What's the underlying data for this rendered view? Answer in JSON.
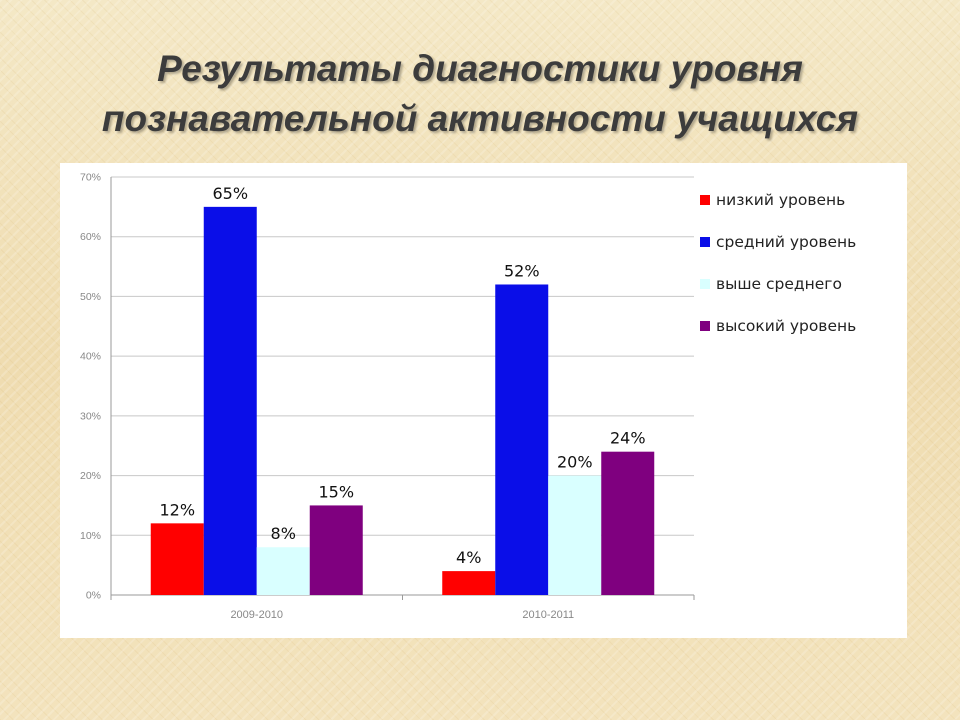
{
  "slide": {
    "title_line1": "Результаты диагностики уровня",
    "title_line2": "познавательной активности учащихся"
  },
  "colors": {
    "low": "#ff0000",
    "medium": "#0a0ee8",
    "above_medium": "#d9ffff",
    "high": "#7f007f"
  },
  "chart_data": {
    "type": "bar",
    "categories": [
      "2009-2010",
      "2010-2011"
    ],
    "series": [
      {
        "name": "низкий уровень",
        "values": [
          12,
          4
        ],
        "labels": [
          "12%",
          "4%"
        ],
        "color_key": "low"
      },
      {
        "name": "средний уровень",
        "values": [
          65,
          52
        ],
        "labels": [
          "65%",
          "52%"
        ],
        "color_key": "medium"
      },
      {
        "name": "выше среднего",
        "values": [
          8,
          20
        ],
        "labels": [
          "8%",
          "20%"
        ],
        "color_key": "above_medium"
      },
      {
        "name": "высокий уровень",
        "values": [
          15,
          24
        ],
        "labels": [
          "15%",
          "24%"
        ],
        "color_key": "high"
      }
    ],
    "yticks": [
      "0%",
      "10%",
      "20%",
      "30%",
      "40%",
      "50%",
      "60%",
      "70%"
    ],
    "ylim": [
      0,
      70
    ],
    "title": "",
    "xlabel": "",
    "ylabel": "",
    "grid": true,
    "legend": "right"
  }
}
